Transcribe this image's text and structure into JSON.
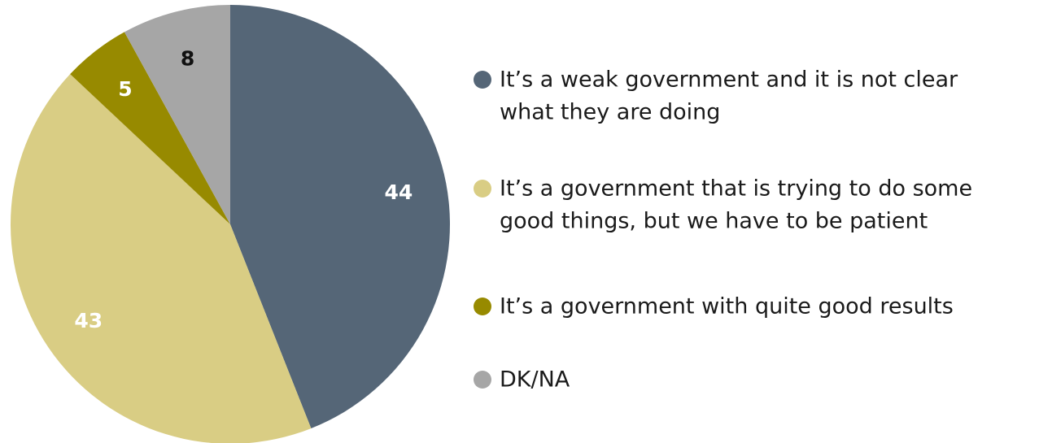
{
  "chart_data": {
    "type": "pie",
    "title": "",
    "slices": [
      {
        "label": "It’s a weak government and it is not clear what they are doing",
        "value": 44,
        "color": "#556677"
      },
      {
        "label": "It’s a government that is trying to do some good things, but we have to be patient",
        "value": 43,
        "color": "#d9cd84"
      },
      {
        "label": "It’s a government with quite good results",
        "value": 5,
        "color": "#978a00"
      },
      {
        "label": "DK/NA",
        "value": 8,
        "color": "#a6a6a6"
      }
    ],
    "data_label_colors": [
      "#ffffff",
      "#ffffff",
      "#ffffff",
      "#111111"
    ],
    "legend": {
      "position": "right",
      "lines": [
        [
          "It’s a weak government and it is not clear",
          "what they are doing"
        ],
        [
          "It’s a government that is trying to do some",
          "good things, but we have to be patient"
        ],
        [
          "It’s a government with quite good results"
        ],
        [
          "DK/NA"
        ]
      ]
    }
  }
}
